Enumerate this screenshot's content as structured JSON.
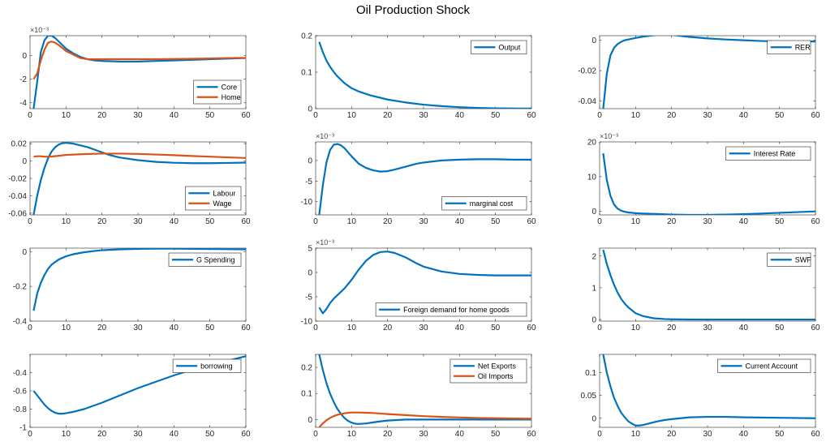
{
  "figure": {
    "title": "Oil Production Shock"
  },
  "colors": {
    "blue": "#0072BD",
    "orange": "#D95319",
    "axis": "#262626",
    "legend_border": "#262626"
  },
  "chart_data": [
    {
      "type": "line",
      "legend_position": "bottom-right",
      "xlim": [
        0,
        60
      ],
      "ylim": [
        -0.0045,
        0.0017
      ],
      "exponent": "×10⁻³",
      "scale": 1000,
      "xticks": [
        0,
        10,
        20,
        30,
        40,
        50,
        60
      ],
      "yticks": [
        -4,
        -2,
        0
      ],
      "yticklabels": [
        "-4",
        "-2",
        "0"
      ],
      "series": [
        {
          "name": "Core",
          "color": "#0072BD",
          "x": [
            1,
            2,
            3,
            4,
            5,
            6,
            7,
            8,
            10,
            12,
            14,
            16,
            18,
            20,
            25,
            30,
            35,
            40,
            45,
            50,
            55,
            60
          ],
          "y": [
            -0.0045,
            -0.0022,
            0.0003,
            0.0013,
            0.0017,
            0.0017,
            0.0015,
            0.0012,
            0.0006,
            0.0002,
            -0.0001,
            -0.0003,
            -0.0004,
            -0.00045,
            -0.0005,
            -0.0005,
            -0.00045,
            -0.0004,
            -0.00035,
            -0.0003,
            -0.00025,
            -0.0002
          ]
        },
        {
          "name": "Home",
          "color": "#D95319",
          "x": [
            1,
            2,
            3,
            4,
            5,
            6,
            7,
            8,
            10,
            12,
            14,
            16,
            18,
            20,
            25,
            30,
            35,
            40,
            45,
            50,
            55,
            60
          ],
          "y": [
            -0.002,
            -0.0015,
            -0.0004,
            0.0005,
            0.0011,
            0.0012,
            0.0011,
            0.0009,
            0.0004,
            0.0001,
            -0.0002,
            -0.0003,
            -0.0003,
            -0.0003,
            -0.0003,
            -0.0003,
            -0.0003,
            -0.00028,
            -0.00026,
            -0.00024,
            -0.0002,
            -0.00018
          ]
        }
      ]
    },
    {
      "type": "line",
      "legend_position": "top-right",
      "xlim": [
        0,
        60
      ],
      "ylim": [
        0,
        0.2
      ],
      "xticks": [
        0,
        10,
        20,
        30,
        40,
        50,
        60
      ],
      "yticks": [
        0,
        0.1,
        0.2
      ],
      "yticklabels": [
        "0",
        "0.1",
        "0.2"
      ],
      "series": [
        {
          "name": "Output",
          "color": "#0072BD",
          "x": [
            1,
            2,
            3,
            4,
            5,
            6,
            8,
            10,
            12,
            15,
            20,
            25,
            30,
            35,
            40,
            45,
            50,
            55,
            60
          ],
          "y": [
            0.183,
            0.155,
            0.132,
            0.115,
            0.101,
            0.089,
            0.07,
            0.056,
            0.047,
            0.037,
            0.025,
            0.017,
            0.011,
            0.007,
            0.004,
            0.002,
            0.001,
            0.0005,
            0.0002
          ]
        }
      ]
    },
    {
      "type": "line",
      "legend_position": "top-right",
      "xlim": [
        0,
        60
      ],
      "ylim": [
        -0.045,
        0.003
      ],
      "xticks": [
        0,
        10,
        20,
        30,
        40,
        50,
        60
      ],
      "yticks": [
        -0.04,
        -0.02,
        0
      ],
      "yticklabels": [
        "-0.04",
        "-0.02",
        "0"
      ],
      "series": [
        {
          "name": "RER",
          "color": "#0072BD",
          "x": [
            1,
            2,
            3,
            4,
            5,
            6,
            7,
            8,
            10,
            12,
            14,
            16,
            18,
            20,
            22,
            25,
            30,
            35,
            40,
            45,
            50,
            55,
            60
          ],
          "y": [
            -0.045,
            -0.022,
            -0.01,
            -0.005,
            -0.0025,
            -0.001,
            0,
            0.0005,
            0.0015,
            0.0023,
            0.003,
            0.0035,
            0.0038,
            0.0036,
            0.003,
            0.0022,
            0.0012,
            0.0005,
            0,
            -0.0005,
            -0.0008,
            -0.0008,
            -0.0008
          ]
        }
      ]
    },
    {
      "type": "line",
      "legend_position": "bottom-right",
      "xlim": [
        0,
        60
      ],
      "ylim": [
        -0.062,
        0.022
      ],
      "xticks": [
        0,
        10,
        20,
        30,
        40,
        50,
        60
      ],
      "yticks": [
        -0.06,
        -0.04,
        -0.02,
        0,
        0.02
      ],
      "yticklabels": [
        "-0.06",
        "-0.04",
        "-0.02",
        "0",
        "0.02"
      ],
      "series": [
        {
          "name": "Labour",
          "color": "#0072BD",
          "x": [
            1,
            2,
            3,
            4,
            5,
            6,
            7,
            8,
            9,
            10,
            12,
            14,
            16,
            18,
            20,
            22,
            25,
            30,
            35,
            40,
            45,
            50,
            55,
            60
          ],
          "y": [
            -0.062,
            -0.04,
            -0.022,
            -0.008,
            0.003,
            0.011,
            0.016,
            0.019,
            0.0205,
            0.021,
            0.02,
            0.018,
            0.016,
            0.013,
            0.01,
            0.007,
            0.004,
            0.001,
            -0.001,
            -0.002,
            -0.0025,
            -0.0025,
            -0.0022,
            -0.0018
          ]
        },
        {
          "name": "Wage",
          "color": "#D95319",
          "x": [
            1,
            2,
            3,
            4,
            5,
            6,
            8,
            10,
            15,
            20,
            25,
            30,
            35,
            40,
            45,
            50,
            55,
            60
          ],
          "y": [
            0.005,
            0.0055,
            0.0055,
            0.005,
            0.005,
            0.0052,
            0.006,
            0.007,
            0.008,
            0.0085,
            0.0085,
            0.0082,
            0.0075,
            0.0067,
            0.0058,
            0.005,
            0.0042,
            0.0035
          ]
        }
      ]
    },
    {
      "type": "line",
      "legend_position": "bottom-right",
      "xlim": [
        0,
        60
      ],
      "ylim": [
        -0.0132,
        0.0045
      ],
      "exponent": "×10⁻³",
      "scale": 1000,
      "xticks": [
        0,
        10,
        20,
        30,
        40,
        50,
        60
      ],
      "yticks": [
        -10,
        -5,
        0
      ],
      "yticklabels": [
        "-10",
        "-5",
        "0"
      ],
      "series": [
        {
          "name": "marginal cost",
          "color": "#0072BD",
          "x": [
            1,
            2,
            3,
            4,
            5,
            6,
            7,
            8,
            10,
            12,
            14,
            16,
            18,
            20,
            22,
            25,
            28,
            30,
            35,
            40,
            45,
            50,
            55,
            60
          ],
          "y": [
            -0.0132,
            -0.006,
            -0.0005,
            0.0025,
            0.0038,
            0.004,
            0.0037,
            0.003,
            0.001,
            -0.0008,
            -0.0018,
            -0.0024,
            -0.0027,
            -0.0026,
            -0.0022,
            -0.0015,
            -0.0008,
            -0.0005,
            0,
            0.0002,
            0.0003,
            0.0003,
            0.0002,
            0.0002
          ]
        }
      ]
    },
    {
      "type": "line",
      "legend_position": "top-right",
      "xlim": [
        0,
        60
      ],
      "ylim": [
        -0.001,
        0.02
      ],
      "exponent": "×10⁻³",
      "scale": 1000,
      "xticks": [
        0,
        10,
        20,
        30,
        40,
        50,
        60
      ],
      "yticks": [
        0,
        10,
        20
      ],
      "yticklabels": [
        "0",
        "10",
        "20"
      ],
      "series": [
        {
          "name": "Interest Rate",
          "color": "#0072BD",
          "x": [
            1,
            2,
            3,
            4,
            5,
            6,
            7,
            8,
            10,
            12,
            15,
            20,
            25,
            30,
            35,
            40,
            45,
            50,
            55,
            60
          ],
          "y": [
            0.0167,
            0.009,
            0.0045,
            0.002,
            0.0008,
            0.0002,
            -0.0001,
            -0.0003,
            -0.0005,
            -0.0006,
            -0.0007,
            -0.0009,
            -0.001,
            -0.001,
            -0.0009,
            -0.0008,
            -0.0006,
            -0.0004,
            -0.0002,
            0
          ]
        }
      ]
    },
    {
      "type": "line",
      "legend_position": "top-right",
      "xlim": [
        0,
        60
      ],
      "ylim": [
        -0.4,
        0.02
      ],
      "xticks": [
        0,
        10,
        20,
        30,
        40,
        50,
        60
      ],
      "yticks": [
        -0.4,
        -0.2,
        0
      ],
      "yticklabels": [
        "-0.4",
        "-0.2",
        "0"
      ],
      "series": [
        {
          "name": "G Spending",
          "color": "#0072BD",
          "x": [
            1,
            2,
            3,
            4,
            5,
            6,
            8,
            10,
            12,
            15,
            18,
            20,
            25,
            30,
            35,
            40,
            45,
            50,
            55,
            60
          ],
          "y": [
            -0.34,
            -0.24,
            -0.18,
            -0.135,
            -0.1,
            -0.075,
            -0.045,
            -0.027,
            -0.015,
            -0.004,
            0.004,
            0.008,
            0.013,
            0.016,
            0.017,
            0.017,
            0.016,
            0.015,
            0.014,
            0.013
          ]
        }
      ]
    },
    {
      "type": "line",
      "legend_position": "bottom-right",
      "xlim": [
        0,
        60
      ],
      "ylim": [
        -0.01,
        0.005
      ],
      "exponent": "×10⁻³",
      "scale": 1000,
      "xticks": [
        0,
        10,
        20,
        30,
        40,
        50,
        60
      ],
      "yticks": [
        -10,
        -5,
        0,
        5
      ],
      "yticklabels": [
        "-10",
        "-5",
        "0",
        "5"
      ],
      "series": [
        {
          "name": "Foreign demand for home goods",
          "color": "#0072BD",
          "x": [
            1,
            2,
            3,
            4,
            5,
            6,
            8,
            10,
            12,
            14,
            16,
            18,
            20,
            22,
            25,
            28,
            30,
            35,
            40,
            45,
            50,
            55,
            60
          ],
          "y": [
            -0.0072,
            -0.0084,
            -0.0075,
            -0.0063,
            -0.0054,
            -0.0047,
            -0.0033,
            -0.0015,
            0.0006,
            0.0024,
            0.0036,
            0.0042,
            0.0043,
            0.004,
            0.0031,
            0.0019,
            0.0012,
            0.0002,
            -0.0003,
            -0.0005,
            -0.0006,
            -0.0006,
            -0.0006
          ]
        }
      ]
    },
    {
      "type": "line",
      "legend_position": "top-right",
      "xlim": [
        0,
        60
      ],
      "ylim": [
        -0.05,
        2.25
      ],
      "xticks": [
        0,
        10,
        20,
        30,
        40,
        50,
        60
      ],
      "yticks": [
        0,
        1,
        2
      ],
      "yticklabels": [
        "0",
        "1",
        "2"
      ],
      "series": [
        {
          "name": "SWF",
          "color": "#0072BD",
          "x": [
            1,
            2,
            3,
            4,
            5,
            6,
            7,
            8,
            10,
            12,
            15,
            18,
            20,
            25,
            30,
            35,
            40,
            50,
            60
          ],
          "y": [
            2.2,
            1.75,
            1.4,
            1.1,
            0.85,
            0.65,
            0.5,
            0.38,
            0.2,
            0.11,
            0.04,
            0.015,
            0.008,
            0.002,
            0,
            0,
            0,
            0,
            0
          ]
        }
      ]
    },
    {
      "type": "line",
      "legend_position": "top-right",
      "xlim": [
        0,
        60
      ],
      "ylim": [
        -1,
        -0.2
      ],
      "xticks": [
        0,
        10,
        20,
        30,
        40,
        50,
        60
      ],
      "yticks": [
        -1,
        -0.8,
        -0.6,
        -0.4
      ],
      "yticklabels": [
        "-1",
        "-0.8",
        "-0.6",
        "-0.4"
      ],
      "series": [
        {
          "name": "borrowing",
          "color": "#0072BD",
          "x": [
            1,
            2,
            3,
            4,
            5,
            6,
            7,
            8,
            9,
            10,
            12,
            15,
            20,
            25,
            30,
            35,
            40,
            45,
            50,
            55,
            60
          ],
          "y": [
            -0.6,
            -0.65,
            -0.7,
            -0.75,
            -0.79,
            -0.82,
            -0.84,
            -0.85,
            -0.85,
            -0.845,
            -0.83,
            -0.8,
            -0.73,
            -0.65,
            -0.57,
            -0.5,
            -0.43,
            -0.37,
            -0.32,
            -0.27,
            -0.22
          ]
        }
      ]
    },
    {
      "type": "line",
      "legend_position": "top-right",
      "xlim": [
        0,
        60
      ],
      "ylim": [
        -0.03,
        0.25
      ],
      "xticks": [
        0,
        10,
        20,
        30,
        40,
        50,
        60
      ],
      "yticks": [
        0,
        0.1,
        0.2
      ],
      "yticklabels": [
        "0",
        "0.1",
        "0.2"
      ],
      "series": [
        {
          "name": "Net Exports",
          "color": "#0072BD",
          "x": [
            1,
            2,
            3,
            4,
            5,
            6,
            7,
            8,
            9,
            10,
            11,
            12,
            14,
            16,
            18,
            20,
            25,
            30,
            35,
            40,
            50,
            60
          ],
          "y": [
            0.25,
            0.19,
            0.14,
            0.1,
            0.068,
            0.042,
            0.022,
            0.006,
            -0.005,
            -0.012,
            -0.016,
            -0.017,
            -0.015,
            -0.011,
            -0.007,
            -0.004,
            0,
            0,
            0,
            0,
            0,
            0
          ]
        },
        {
          "name": "Oil Imports",
          "color": "#D95319",
          "x": [
            1,
            2,
            3,
            4,
            5,
            6,
            8,
            10,
            12,
            14,
            16,
            18,
            20,
            25,
            30,
            35,
            40,
            45,
            50,
            55,
            60
          ],
          "y": [
            -0.03,
            -0.015,
            -0.003,
            0.006,
            0.013,
            0.018,
            0.024,
            0.027,
            0.027,
            0.026,
            0.025,
            0.023,
            0.021,
            0.017,
            0.013,
            0.01,
            0.008,
            0.006,
            0.005,
            0.004,
            0.003
          ]
        }
      ]
    },
    {
      "type": "line",
      "legend_position": "top-right",
      "xlim": [
        0,
        60
      ],
      "ylim": [
        -0.02,
        0.14
      ],
      "xticks": [
        0,
        10,
        20,
        30,
        40,
        50,
        60
      ],
      "yticks": [
        0,
        0.05,
        0.1
      ],
      "yticklabels": [
        "0",
        "0.05",
        "0.1"
      ],
      "series": [
        {
          "name": "Current Account",
          "color": "#0072BD",
          "x": [
            1,
            2,
            3,
            4,
            5,
            6,
            7,
            8,
            9,
            10,
            11,
            12,
            14,
            16,
            18,
            20,
            25,
            30,
            35,
            40,
            50,
            60
          ],
          "y": [
            0.14,
            0.1,
            0.07,
            0.045,
            0.027,
            0.012,
            0.002,
            -0.007,
            -0.012,
            -0.016,
            -0.016,
            -0.015,
            -0.011,
            -0.007,
            -0.004,
            -0.002,
            0.002,
            0.003,
            0.003,
            0.002,
            0.001,
            0
          ]
        }
      ]
    }
  ]
}
